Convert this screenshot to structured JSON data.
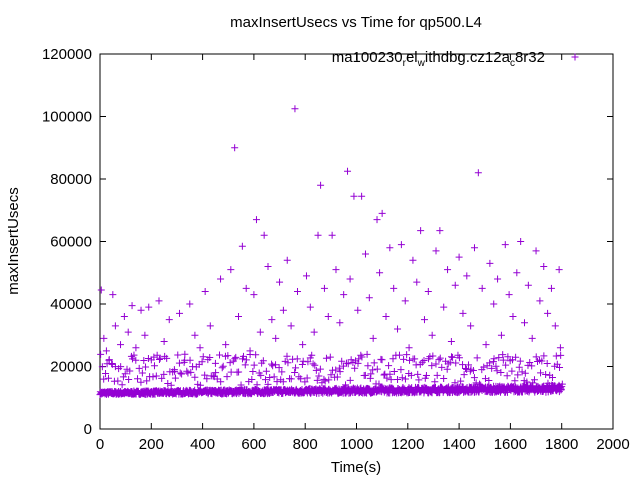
{
  "chart_data": {
    "type": "scatter",
    "title": "maxInsertUsecs vs Time for qp500.L4",
    "xlabel": "Time(s)",
    "ylabel": "maxInsertUsecs",
    "xlim": [
      0,
      2000
    ],
    "ylim": [
      0,
      120000
    ],
    "x_ticks": [
      "0",
      "200",
      "400",
      "600",
      "800",
      "1000",
      "1200",
      "1400",
      "1600",
      "1800",
      "2000"
    ],
    "y_ticks": [
      "0",
      "20000",
      "40000",
      "60000",
      "80000",
      "100000",
      "120000"
    ],
    "grid": false,
    "legend_position": "top-right",
    "marker_color": "#9400d3",
    "marker": "plus",
    "legend": {
      "part1": "ma100230",
      "sub1": "r",
      "part2": "el",
      "sub2": "w",
      "part3": "ithdbg.cz12a",
      "sub3": "c",
      "part4": "8r32"
    },
    "series": [
      {
        "x_range": [
          0,
          1800
        ],
        "baseline_low": 11000,
        "baseline_high_start": 12000,
        "baseline_high_end": 14000,
        "outliers": [
          [
            5,
            44500
          ],
          [
            15,
            29000
          ],
          [
            25,
            25000
          ],
          [
            35,
            22000
          ],
          [
            50,
            43000
          ],
          [
            60,
            33000
          ],
          [
            80,
            27000
          ],
          [
            95,
            36000
          ],
          [
            110,
            31000
          ],
          [
            125,
            39500
          ],
          [
            140,
            26000
          ],
          [
            160,
            38000
          ],
          [
            175,
            30000
          ],
          [
            190,
            39000
          ],
          [
            210,
            23000
          ],
          [
            230,
            41000
          ],
          [
            250,
            28000
          ],
          [
            270,
            35000
          ],
          [
            290,
            19000
          ],
          [
            310,
            37000
          ],
          [
            330,
            22000
          ],
          [
            350,
            40000
          ],
          [
            370,
            30000
          ],
          [
            390,
            26000
          ],
          [
            410,
            44000
          ],
          [
            430,
            33000
          ],
          [
            450,
            21000
          ],
          [
            470,
            48000
          ],
          [
            490,
            27000
          ],
          [
            510,
            51000
          ],
          [
            525,
            90000
          ],
          [
            540,
            36000
          ],
          [
            555,
            58500
          ],
          [
            570,
            45000
          ],
          [
            585,
            25000
          ],
          [
            600,
            43000
          ],
          [
            610,
            67000
          ],
          [
            625,
            31000
          ],
          [
            640,
            62000
          ],
          [
            655,
            52000
          ],
          [
            670,
            35000
          ],
          [
            685,
            29000
          ],
          [
            700,
            47000
          ],
          [
            715,
            38000
          ],
          [
            730,
            54000
          ],
          [
            745,
            33000
          ],
          [
            760,
            102500
          ],
          [
            770,
            44000
          ],
          [
            790,
            27000
          ],
          [
            805,
            49000
          ],
          [
            820,
            39000
          ],
          [
            835,
            31000
          ],
          [
            850,
            62000
          ],
          [
            860,
            78000
          ],
          [
            875,
            45000
          ],
          [
            890,
            36000
          ],
          [
            905,
            62000
          ],
          [
            920,
            51000
          ],
          [
            935,
            34000
          ],
          [
            950,
            43000
          ],
          [
            965,
            82500
          ],
          [
            975,
            48000
          ],
          [
            990,
            74500
          ],
          [
            1005,
            38000
          ],
          [
            1020,
            74500
          ],
          [
            1035,
            56000
          ],
          [
            1050,
            42000
          ],
          [
            1065,
            29000
          ],
          [
            1080,
            67000
          ],
          [
            1090,
            50000
          ],
          [
            1100,
            69000
          ],
          [
            1115,
            36000
          ],
          [
            1130,
            58000
          ],
          [
            1145,
            45000
          ],
          [
            1160,
            32000
          ],
          [
            1175,
            59000
          ],
          [
            1190,
            41000
          ],
          [
            1205,
            26000
          ],
          [
            1220,
            54000
          ],
          [
            1235,
            47000
          ],
          [
            1250,
            63500
          ],
          [
            1265,
            35000
          ],
          [
            1280,
            44000
          ],
          [
            1295,
            30000
          ],
          [
            1310,
            57000
          ],
          [
            1325,
            63500
          ],
          [
            1340,
            39000
          ],
          [
            1355,
            51000
          ],
          [
            1370,
            28000
          ],
          [
            1385,
            46000
          ],
          [
            1400,
            55000
          ],
          [
            1415,
            37000
          ],
          [
            1430,
            49000
          ],
          [
            1445,
            33000
          ],
          [
            1460,
            58000
          ],
          [
            1475,
            82000
          ],
          [
            1490,
            45000
          ],
          [
            1505,
            27000
          ],
          [
            1520,
            53000
          ],
          [
            1535,
            40000
          ],
          [
            1550,
            48000
          ],
          [
            1565,
            30000
          ],
          [
            1580,
            59000
          ],
          [
            1595,
            43000
          ],
          [
            1610,
            36000
          ],
          [
            1625,
            50000
          ],
          [
            1640,
            60000
          ],
          [
            1655,
            34000
          ],
          [
            1670,
            46000
          ],
          [
            1685,
            29000
          ],
          [
            1700,
            57000
          ],
          [
            1715,
            41000
          ],
          [
            1730,
            52000
          ],
          [
            1745,
            37000
          ],
          [
            1760,
            45000
          ],
          [
            1775,
            33000
          ],
          [
            1790,
            51000
          ],
          [
            1795,
            26000
          ]
        ]
      }
    ]
  }
}
